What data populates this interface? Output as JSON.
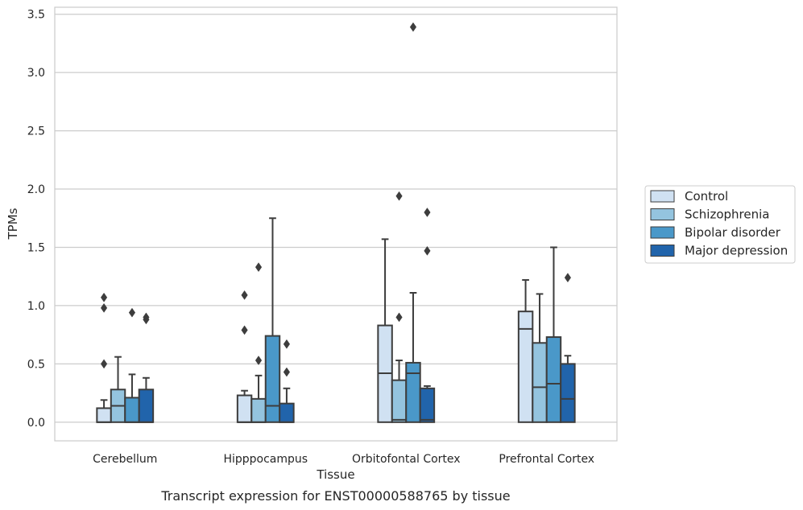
{
  "caption": "Transcript expression for ENST00000588765 by tissue",
  "chart_data": {
    "type": "box",
    "xlabel": "Tissue",
    "ylabel": "TPMs",
    "ylim": [
      -0.16,
      3.56
    ],
    "yticks": [
      "0.0",
      "0.5",
      "1.0",
      "1.5",
      "2.0",
      "2.5",
      "3.0",
      "3.5"
    ],
    "grid": true,
    "legend_position": "right",
    "categories": [
      "Cerebellum",
      "Hipppocampus",
      "Orbitofontal Cortex",
      "Prefrontal Cortex"
    ],
    "series": [
      {
        "name": "Control",
        "color": "#d0e1f2",
        "boxes": [
          {
            "q1": 0.0,
            "median": 0.0,
            "q3": 0.12,
            "whisker_low": 0.0,
            "whisker_high": 0.19,
            "outliers": [
              0.5,
              0.98,
              1.07
            ]
          },
          {
            "q1": 0.0,
            "median": 0.0,
            "q3": 0.23,
            "whisker_low": 0.0,
            "whisker_high": 0.27,
            "outliers": [
              0.79,
              1.09
            ]
          },
          {
            "q1": 0.0,
            "median": 0.42,
            "q3": 0.83,
            "whisker_low": 0.0,
            "whisker_high": 1.57,
            "outliers": []
          },
          {
            "q1": 0.0,
            "median": 0.8,
            "q3": 0.95,
            "whisker_low": 0.0,
            "whisker_high": 1.22,
            "outliers": []
          }
        ]
      },
      {
        "name": "Schizophrenia",
        "color": "#94c4df",
        "boxes": [
          {
            "q1": 0.0,
            "median": 0.14,
            "q3": 0.28,
            "whisker_low": 0.0,
            "whisker_high": 0.56,
            "outliers": []
          },
          {
            "q1": 0.0,
            "median": 0.0,
            "q3": 0.2,
            "whisker_low": 0.0,
            "whisker_high": 0.4,
            "outliers": [
              0.53,
              1.33
            ]
          },
          {
            "q1": 0.0,
            "median": 0.02,
            "q3": 0.36,
            "whisker_low": 0.0,
            "whisker_high": 0.53,
            "outliers": [
              0.9,
              1.94
            ]
          },
          {
            "q1": 0.0,
            "median": 0.3,
            "q3": 0.68,
            "whisker_low": 0.0,
            "whisker_high": 1.1,
            "outliers": []
          }
        ]
      },
      {
        "name": "Bipolar disorder",
        "color": "#4a98c9",
        "boxes": [
          {
            "q1": 0.0,
            "median": 0.0,
            "q3": 0.21,
            "whisker_low": 0.0,
            "whisker_high": 0.41,
            "outliers": [
              0.94
            ]
          },
          {
            "q1": 0.0,
            "median": 0.14,
            "q3": 0.74,
            "whisker_low": 0.0,
            "whisker_high": 1.75,
            "outliers": []
          },
          {
            "q1": 0.0,
            "median": 0.42,
            "q3": 0.51,
            "whisker_low": 0.0,
            "whisker_high": 1.11,
            "outliers": [
              3.39
            ]
          },
          {
            "q1": 0.0,
            "median": 0.33,
            "q3": 0.73,
            "whisker_low": 0.0,
            "whisker_high": 1.5,
            "outliers": []
          }
        ]
      },
      {
        "name": "Major depression",
        "color": "#2164ab",
        "boxes": [
          {
            "q1": 0.0,
            "median": 0.0,
            "q3": 0.28,
            "whisker_low": 0.0,
            "whisker_high": 0.38,
            "outliers": [
              0.88,
              0.9
            ]
          },
          {
            "q1": 0.0,
            "median": 0.0,
            "q3": 0.16,
            "whisker_low": 0.0,
            "whisker_high": 0.29,
            "outliers": [
              0.43,
              0.67
            ]
          },
          {
            "q1": 0.0,
            "median": 0.02,
            "q3": 0.29,
            "whisker_low": 0.0,
            "whisker_high": 0.31,
            "outliers": [
              1.47,
              1.8
            ]
          },
          {
            "q1": 0.0,
            "median": 0.2,
            "q3": 0.5,
            "whisker_low": 0.0,
            "whisker_high": 0.57,
            "outliers": [
              1.24
            ]
          }
        ]
      }
    ]
  }
}
